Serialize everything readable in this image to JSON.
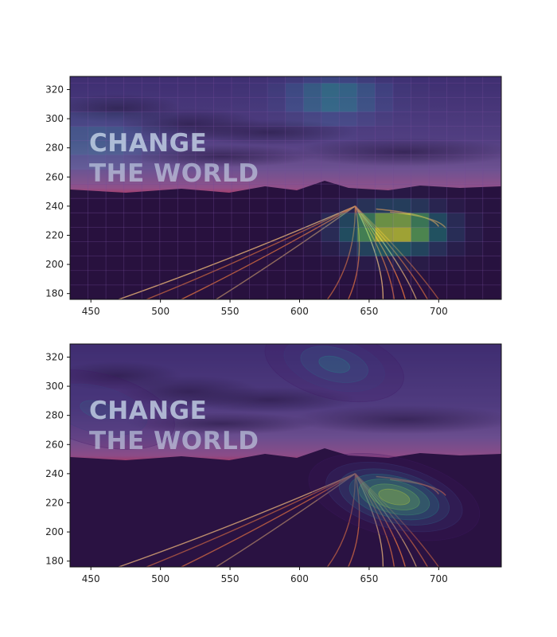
{
  "photo_overlay": {
    "line1": "CHANGE",
    "line2": "THE WORLD"
  },
  "colors": {
    "sky_top": "#3f3f7c",
    "sky_mid": "#6c5f9a",
    "horizon": "#c8506a",
    "ground": "#201739",
    "light_trail": "#ff8a3a",
    "light_trail_core": "#ffd27a",
    "heat_low": "#440154",
    "heat_mid": "#21908d",
    "heat_high": "#fde725"
  },
  "chart_data": [
    {
      "type": "heatmap",
      "style": "grid",
      "title": "",
      "xlabel": "",
      "ylabel": "",
      "xlim": [
        435,
        745
      ],
      "ylim": [
        176,
        329
      ],
      "xticks": [
        450,
        500,
        550,
        600,
        650,
        700
      ],
      "yticks": [
        180,
        200,
        220,
        240,
        260,
        280,
        300,
        320
      ],
      "grid": true,
      "background": "photo",
      "peaks": [
        {
          "x": 668,
          "y": 224,
          "sx": 28,
          "sy": 12,
          "amplitude": 1.0
        },
        {
          "x": 625,
          "y": 315,
          "sx": 26,
          "sy": 12,
          "amplitude": 0.55
        },
        {
          "x": 455,
          "y": 284,
          "sx": 32,
          "sy": 14,
          "amplitude": 0.38
        }
      ]
    },
    {
      "type": "heatmap",
      "style": "contour",
      "title": "",
      "xlabel": "",
      "ylabel": "",
      "xlim": [
        435,
        745
      ],
      "ylim": [
        176,
        329
      ],
      "xticks": [
        450,
        500,
        550,
        600,
        650,
        700
      ],
      "yticks": [
        180,
        200,
        220,
        240,
        260,
        280,
        300,
        320
      ],
      "grid": false,
      "background": "photo",
      "peaks": [
        {
          "x": 668,
          "y": 224,
          "sx": 28,
          "sy": 12,
          "amplitude": 1.0
        },
        {
          "x": 625,
          "y": 315,
          "sx": 26,
          "sy": 12,
          "amplitude": 0.55
        },
        {
          "x": 455,
          "y": 284,
          "sx": 32,
          "sy": 14,
          "amplitude": 0.38
        }
      ]
    }
  ]
}
